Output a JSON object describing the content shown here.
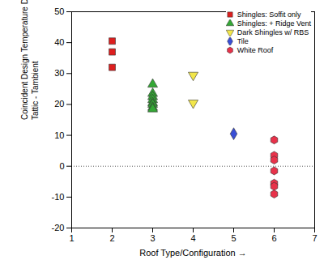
{
  "chart_data": {
    "type": "scatter",
    "x_label": "Roof Type/Configuration",
    "y_label": [
      "Coincident Design Temperature Difference (oF)",
      "Tattic - Tambient"
    ],
    "xlim": [
      1,
      7
    ],
    "xticks": [
      1,
      2,
      3,
      4,
      5,
      6,
      7
    ],
    "ylim": [
      -20,
      50
    ],
    "yticks": [
      -20,
      -10,
      0,
      10,
      20,
      30,
      40,
      50
    ],
    "grid": false,
    "legend": "upper right",
    "reference_lines": [
      0
    ],
    "series": [
      {
        "name": "Shingles: Soffit only",
        "color": "#dd1f1f",
        "marker": "square",
        "x": [
          2,
          2,
          2
        ],
        "values": [
          40.5,
          37,
          32
        ]
      },
      {
        "name": "Shingles: + Ridge Vent",
        "color": "#34a835",
        "marker": "triangle",
        "x": [
          3,
          3,
          3,
          3,
          3,
          3,
          3,
          3
        ],
        "values": [
          26.5,
          23.5,
          22.5,
          21.5,
          20.5,
          20,
          19,
          18.5
        ]
      },
      {
        "name": "Dark Shingles w/ RBS",
        "color": "#f2e64a",
        "marker": "triangle-down",
        "x": [
          4,
          4
        ],
        "values": [
          29.5,
          20.5
        ]
      },
      {
        "name": "Tile",
        "color": "#3a4fd6",
        "marker": "diamond",
        "x": [
          5
        ],
        "values": [
          10.5
        ]
      },
      {
        "name": "White Roof",
        "color": "#e8324a",
        "marker": "hexagon",
        "x": [
          6,
          6,
          6,
          6,
          6,
          6,
          6
        ],
        "values": [
          8.5,
          3.5,
          2,
          -1.5,
          -5.5,
          -6.5,
          -9
        ]
      }
    ]
  }
}
